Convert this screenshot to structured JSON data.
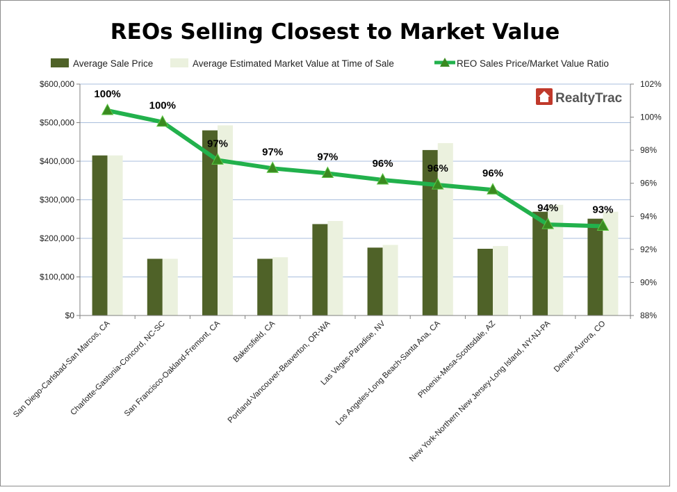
{
  "chart_data": {
    "type": "bar",
    "title": "REOs Selling Closest to Market Value",
    "categories": [
      "San Diego-Carlsbad-San Marcos, CA",
      "Charlotte-Gastonia-Concord, NC-SC",
      "San Francisco-Oakland-Fremont, CA",
      "Bakersfield, CA",
      "Portland-Vancouver-Beaverton, OR-WA",
      "Las Vegas-Paradise, NV",
      "Los Angeles-Long Beach-Santa Ana, CA",
      "Phoenix-Mesa-Scottsdale, AZ",
      "New York-Northern New Jersey-Long Island, NY-NJ-PA",
      "Denver-Aurora, CO"
    ],
    "series": [
      {
        "name": "Average Sale Price",
        "type": "bar",
        "axis": "left",
        "color": "#4f6228",
        "values": [
          415000,
          147000,
          480000,
          147000,
          237000,
          176000,
          429000,
          173000,
          269000,
          251000
        ]
      },
      {
        "name": "Average Estimated Market Value at Time of Sale",
        "type": "bar",
        "axis": "left",
        "color": "#ebf1de",
        "values": [
          415000,
          147000,
          493000,
          151000,
          245000,
          183000,
          447000,
          180000,
          287000,
          269000
        ]
      },
      {
        "name": "REO Sales Price/Market Value Ratio",
        "type": "line",
        "axis": "right",
        "color": "#22b14c",
        "marker_color": "#3a8a20",
        "values": [
          100.4,
          99.7,
          97.4,
          96.9,
          96.6,
          96.2,
          95.9,
          95.6,
          93.5,
          93.4
        ],
        "data_labels": [
          "100%",
          "100%",
          "97%",
          "97%",
          "97%",
          "96%",
          "96%",
          "96%",
          "94%",
          "93%"
        ]
      }
    ],
    "ylim": [
      0,
      600000
    ],
    "y_ticks": [
      "$0",
      "$100,000",
      "$200,000",
      "$300,000",
      "$400,000",
      "$500,000",
      "$600,000"
    ],
    "y2lim": [
      88,
      102
    ],
    "y2_ticks": [
      "88%",
      "90%",
      "92%",
      "94%",
      "96%",
      "98%",
      "100%",
      "102%"
    ],
    "grid": true,
    "legend_position": "top"
  },
  "logo": {
    "text_realty": "Realty",
    "text_trac": "Trac",
    "brand_color": "#c0392b"
  }
}
